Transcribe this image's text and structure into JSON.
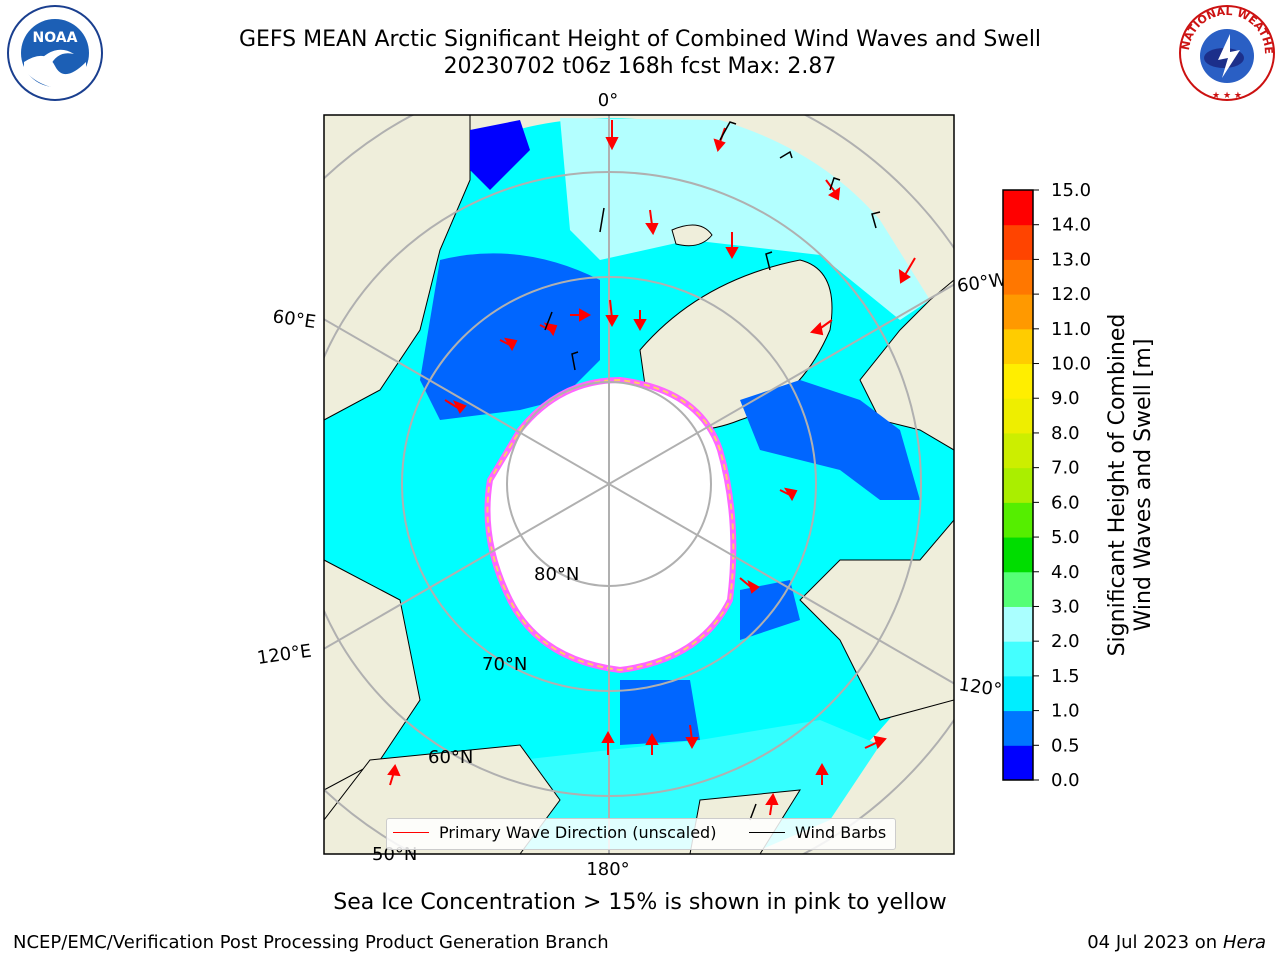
{
  "header": {
    "title_line1": "GEFS MEAN Arctic Significant Height of Combined Wind Waves and Swell",
    "title_line2": "20230702 t06z 168h fcst   Max: 2.87"
  },
  "logos": {
    "left": {
      "icon": "noaa-logo-icon",
      "text": "NOAA"
    },
    "right": {
      "icon": "nws-logo-icon",
      "text": "NATIONAL WEATHER SERVICE"
    }
  },
  "map": {
    "longitude_labels": [
      "0°",
      "60°E",
      "120°E",
      "180°",
      "120°W",
      "60°W"
    ],
    "latitude_labels": [
      "80°N",
      "70°N",
      "60°N",
      "50°N"
    ],
    "colors": {
      "land": "#efeedb",
      "ice": "#ffffff",
      "ocean_low": "#0066ff",
      "ocean_mid": "#00ffff",
      "ocean_light": "#b3ffff",
      "grid": "#b0b0b0",
      "wave_arrow": "#ff0000"
    }
  },
  "legend": {
    "wave_label": "Primary Wave Direction (unscaled)",
    "wave_color": "#ff0000",
    "barb_label": "Wind Barbs",
    "barb_color": "#000000"
  },
  "colorbar": {
    "label_line1": "Significant Height of Combined",
    "label_line2": "Wind Waves and Swell [m]",
    "ticks": [
      "0.0",
      "0.5",
      "1.0",
      "1.5",
      "2.0",
      "3.0",
      "4.0",
      "5.0",
      "6.0",
      "7.0",
      "8.0",
      "9.0",
      "10.0",
      "11.0",
      "12.0",
      "13.0",
      "14.0",
      "15.0"
    ],
    "colors": [
      "#0000ff",
      "#0077ff",
      "#00eeff",
      "#44ffff",
      "#aaffff",
      "#55ff77",
      "#00dd00",
      "#55ee00",
      "#aaee00",
      "#ccee00",
      "#eeee00",
      "#ffee00",
      "#ffcc00",
      "#ff9900",
      "#ff7700",
      "#ff4400",
      "#ff0000"
    ]
  },
  "caption": "Sea Ice Concentration > 15% is shown in pink to yellow",
  "footer": {
    "left": "NCEP/EMC/Verification Post Processing Product Generation Branch",
    "right_date": "04 Jul 2023 on ",
    "right_host": "Hera"
  }
}
